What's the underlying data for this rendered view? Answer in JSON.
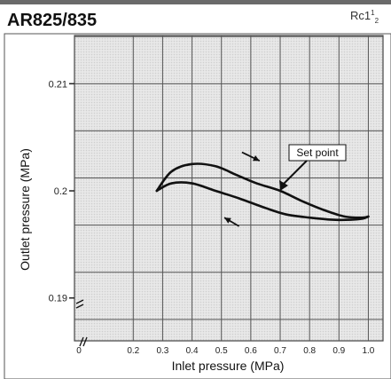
{
  "header": {
    "title": "AR825/835",
    "port_prefix": "Rc1",
    "port_sup": "1",
    "port_sub": "2"
  },
  "chart_data": {
    "type": "line",
    "title": "AR825/835",
    "xlabel": "Inlet pressure (MPa)",
    "ylabel": "Outlet pressure (MPa)",
    "xlim": [
      0,
      1.05
    ],
    "ylim": [
      0.186,
      0.2145
    ],
    "x_ticks": [
      "0",
      "0.2",
      "0.3",
      "0.4",
      "0.5",
      "0.6",
      "0.7",
      "0.8",
      "0.9",
      "1.0"
    ],
    "y_ticks": [
      "0.19",
      "0.2",
      "0.21"
    ],
    "grid": true,
    "axis_break": true,
    "series": [
      {
        "x": [
          0.28,
          0.33,
          0.4,
          0.48,
          0.55,
          0.62,
          0.7,
          0.77,
          0.85,
          0.92,
          0.98,
          1.0
        ],
        "y": [
          0.2,
          0.2018,
          0.2025,
          0.2023,
          0.2015,
          0.2007,
          0.2,
          0.1991,
          0.1982,
          0.1976,
          0.1975,
          0.1976
        ]
      },
      {
        "x": [
          0.28,
          0.33,
          0.4,
          0.48,
          0.56,
          0.65,
          0.72,
          0.8,
          0.88,
          0.94,
          0.98,
          1.0
        ],
        "y": [
          0.2,
          0.2007,
          0.2007,
          0.2,
          0.1993,
          0.1984,
          0.1978,
          0.1975,
          0.1973,
          0.1973,
          0.1974,
          0.1976
        ]
      }
    ],
    "annotations": [
      {
        "text": "Set point",
        "x": 0.7,
        "y": 0.2
      }
    ]
  }
}
